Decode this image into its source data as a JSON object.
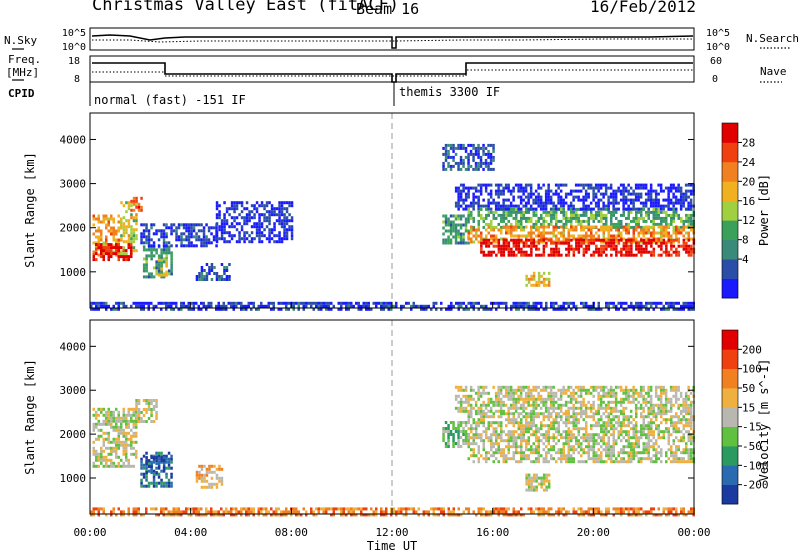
{
  "header": {
    "station": "Christmas Valley East (fitACF)",
    "beam": "Beam 16",
    "date": "16/Feb/2012"
  },
  "side_labels": {
    "nsky": "N.Sky",
    "freq_line1": "Freq.",
    "freq_line2": "[MHz]",
    "cpid": "CPID",
    "nsearch": "N.Search",
    "nave": "Nave"
  },
  "noise_panel": {
    "left_ticks": [
      "10^5",
      "10^0"
    ],
    "right_ticks": [
      "10^5",
      "10^0"
    ]
  },
  "freq_panel": {
    "left_ticks": [
      "18",
      "8"
    ],
    "right_ticks": [
      "60",
      "0"
    ]
  },
  "cpid_panel": {
    "segments": [
      {
        "label": "normal (fast) -151 IF",
        "start_hour": 0,
        "end_hour": 12
      },
      {
        "label": "themis 3300 IF",
        "start_hour": 12,
        "end_hour": 24
      }
    ]
  },
  "colors": {
    "power": [
      "#1a1aff",
      "#2a4ea8",
      "#3a8a7a",
      "#3aa05a",
      "#a0d040",
      "#f0b020",
      "#f08020",
      "#f04010",
      "#e00000"
    ],
    "velocity": [
      "#1a3aa0",
      "#2a6ab0",
      "#2a9a60",
      "#60c040",
      "#b8b8b0",
      "#f0b040",
      "#f08020",
      "#f04010",
      "#e00000"
    ],
    "ground_scatter": "#b8b8b0"
  },
  "chart_data": [
    {
      "type": "heatmap",
      "title": "Power",
      "ylabel": "Slant Range [km]",
      "xlabel": "Time UT",
      "xlim": [
        0,
        24
      ],
      "ylim": [
        180,
        4600
      ],
      "yticks": [
        1000,
        2000,
        3000,
        4000
      ],
      "xticks": [
        "00:00",
        "04:00",
        "08:00",
        "12:00",
        "16:00",
        "20:00",
        "00:00"
      ],
      "colorbar": {
        "label": "Power [dB]",
        "ticks": [
          "28",
          "24",
          "20",
          "16",
          "12",
          "8",
          "4"
        ]
      },
      "regions": [
        {
          "t0": 0.1,
          "t1": 1.2,
          "r0": 1350,
          "r1": 2300,
          "level": 5.5
        },
        {
          "t0": 1.2,
          "t1": 1.8,
          "r0": 1400,
          "r1": 2600,
          "level": 4.5
        },
        {
          "t0": 0.1,
          "t1": 1.6,
          "r0": 1250,
          "r1": 1650,
          "level": 8
        },
        {
          "t0": 1.6,
          "t1": 2.0,
          "r0": 2400,
          "r1": 2700,
          "level": 6.5
        },
        {
          "t0": 2.1,
          "t1": 3.2,
          "r0": 900,
          "r1": 1600,
          "level": 2.5
        },
        {
          "t0": 2.7,
          "t1": 3.0,
          "r0": 950,
          "r1": 1300,
          "level": 4.5
        },
        {
          "t0": 2.0,
          "t1": 5.0,
          "r0": 1600,
          "r1": 2100,
          "level": 0.5
        },
        {
          "t0": 4.2,
          "t1": 5.5,
          "r0": 800,
          "r1": 1200,
          "level": 1.0
        },
        {
          "t0": 5.0,
          "t1": 8.0,
          "r0": 1700,
          "r1": 2600,
          "level": 0.3
        },
        {
          "t0": 14.0,
          "t1": 15.0,
          "r0": 1650,
          "r1": 2300,
          "level": 2.5
        },
        {
          "t0": 15.0,
          "t1": 24.0,
          "r0": 2000,
          "r1": 2450,
          "level": 3.0
        },
        {
          "t0": 15.0,
          "t1": 24.0,
          "r0": 1700,
          "r1": 2050,
          "level": 5.5
        },
        {
          "t0": 15.5,
          "t1": 24.0,
          "r0": 1400,
          "r1": 1750,
          "level": 8
        },
        {
          "t0": 14.5,
          "t1": 24.0,
          "r0": 2450,
          "r1": 3000,
          "level": 0.3
        },
        {
          "t0": 14.0,
          "t1": 16.0,
          "r0": 3300,
          "r1": 3900,
          "level": 1.0
        },
        {
          "t0": 17.3,
          "t1": 18.2,
          "r0": 700,
          "r1": 1000,
          "level": 5.0
        },
        {
          "t0": 0.0,
          "t1": 24.0,
          "r0": 180,
          "r1": 320,
          "level": 0.5
        }
      ]
    },
    {
      "type": "heatmap",
      "title": "Velocity",
      "ylabel": "Slant Range [km]",
      "xlabel": "Time UT",
      "xlim": [
        0,
        24
      ],
      "ylim": [
        180,
        4600
      ],
      "yticks": [
        1000,
        2000,
        3000,
        4000
      ],
      "xticks": [
        "00:00",
        "04:00",
        "08:00",
        "12:00",
        "16:00",
        "20:00",
        "00:00"
      ],
      "colorbar": {
        "label": "Velocity [m s^-1]",
        "ticks": [
          "200",
          "100",
          "50",
          "15",
          "-15",
          "-50",
          "-100",
          "-200"
        ]
      },
      "regions": [
        {
          "t0": 0.1,
          "t1": 1.8,
          "r0": 1300,
          "r1": 2600,
          "level": 4
        },
        {
          "t0": 1.8,
          "t1": 2.6,
          "r0": 2300,
          "r1": 2800,
          "level": 4
        },
        {
          "t0": 2.0,
          "t1": 3.2,
          "r0": 800,
          "r1": 1600,
          "level": 1
        },
        {
          "t0": 2.2,
          "t1": 2.9,
          "r0": 1100,
          "r1": 1500,
          "level": 0
        },
        {
          "t0": 4.2,
          "t1": 5.2,
          "r0": 800,
          "r1": 1300,
          "level": 5
        },
        {
          "t0": 14.0,
          "t1": 15.0,
          "r0": 1700,
          "r1": 2300,
          "level": 3
        },
        {
          "t0": 15.0,
          "t1": 24.0,
          "r0": 1400,
          "r1": 2500,
          "level": 4
        },
        {
          "t0": 14.5,
          "t1": 24.0,
          "r0": 2500,
          "r1": 3100,
          "level": 4
        },
        {
          "t0": 17.3,
          "t1": 18.2,
          "r0": 700,
          "r1": 1100,
          "level": 4
        },
        {
          "t0": 0.0,
          "t1": 24.0,
          "r0": 180,
          "r1": 330,
          "level": 6
        }
      ]
    }
  ]
}
